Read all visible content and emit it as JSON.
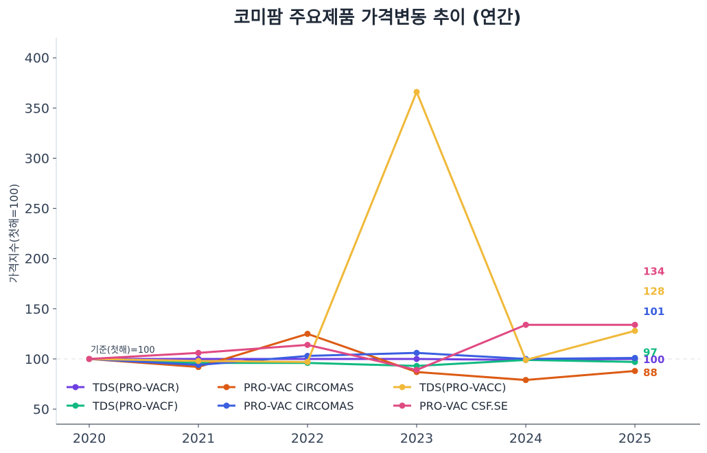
{
  "chart_data": {
    "type": "line",
    "title": "코미팜 주요제품 가격변동 추이 (연간)",
    "ylabel": "가격지수(첫해=100)",
    "xlabel": "",
    "x": [
      "2020",
      "2021",
      "2022",
      "2023",
      "2024",
      "2025"
    ],
    "ylim": [
      35,
      420
    ],
    "yticks": [
      50,
      100,
      150,
      200,
      250,
      300,
      350,
      400
    ],
    "grid": false,
    "legend_position": "bottom-left",
    "baseline": {
      "value": 100,
      "label": "기준(첫해)=100"
    },
    "series": [
      {
        "name": "TDS(PRO-VACR)",
        "color": "#6d3fe0",
        "values": [
          100,
          100,
          100,
          100,
          99,
          100
        ],
        "end_label": "100",
        "end_label_value": 100
      },
      {
        "name": "TDS(PRO-VACF)",
        "color": "#10b981",
        "values": [
          100,
          96,
          96,
          93,
          99,
          97
        ],
        "end_label": "97",
        "end_label_value": 107
      },
      {
        "name": "PRO-VAC CIRCOMAS",
        "color": "#dc5b14",
        "values": [
          100,
          92,
          125,
          87,
          79,
          88
        ],
        "end_label": "88",
        "end_label_value": 87
      },
      {
        "name": "PRO-VAC CIRCOMAS",
        "color": "#3b5fe0",
        "values": [
          100,
          94,
          103,
          106,
          100,
          101
        ],
        "end_label": "101",
        "end_label_value": 148
      },
      {
        "name": "TDS(PRO-VACC)",
        "color": "#f0b93a",
        "values": [
          100,
          98,
          97,
          366,
          99,
          128
        ],
        "end_label": "128",
        "end_label_value": 168
      },
      {
        "name": "PRO-VAC CSF.SE",
        "color": "#e04a82",
        "values": [
          100,
          106,
          114,
          89,
          134,
          134
        ],
        "end_label": "134",
        "end_label_value": 188
      }
    ]
  }
}
